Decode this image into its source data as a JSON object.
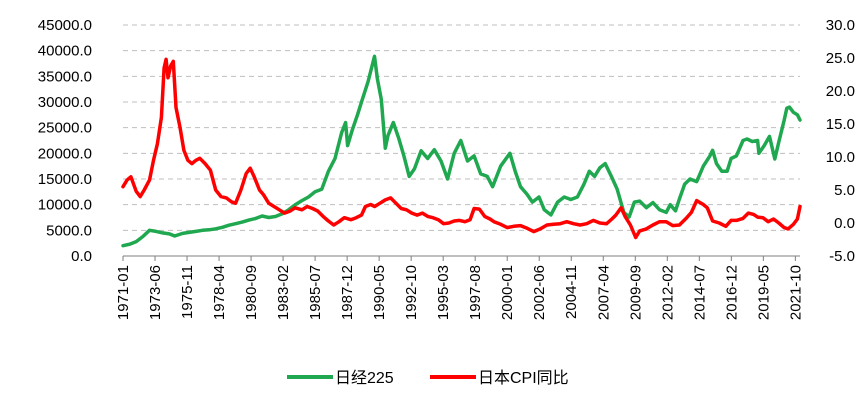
{
  "chart_data": {
    "type": "line",
    "x_tick_labels": [
      "1971-01",
      "1973-06",
      "1975-11",
      "1978-04",
      "1980-09",
      "1983-02",
      "1985-07",
      "1987-12",
      "1990-05",
      "1992-10",
      "1995-03",
      "1997-08",
      "2000-01",
      "2002-06",
      "2004-11",
      "2007-04",
      "2009-09",
      "2012-02",
      "2014-07",
      "2016-12",
      "2019-05",
      "2021-10"
    ],
    "x_tick_dates": [
      1971.0,
      1973.417,
      1975.833,
      1978.25,
      1980.667,
      1983.083,
      1985.5,
      1987.917,
      1990.333,
      1992.75,
      1995.167,
      1997.583,
      2000.0,
      2002.417,
      2004.833,
      2007.25,
      2009.667,
      2012.083,
      2014.5,
      2016.917,
      2019.333,
      2021.75
    ],
    "x_range": [
      1971.0,
      2022.1
    ],
    "y_left": {
      "ticks": [
        "0.0",
        "5000.0",
        "10000.0",
        "15000.0",
        "20000.0",
        "25000.0",
        "30000.0",
        "35000.0",
        "40000.0",
        "45000.0"
      ],
      "range": [
        0,
        45000
      ]
    },
    "y_right": {
      "ticks": [
        "-5.0",
        "0.0",
        "5.0",
        "10.0",
        "15.0",
        "20.0",
        "25.0",
        "30.0"
      ],
      "range": [
        -5,
        30
      ]
    },
    "grid": "horizontal dashed",
    "legend_position": "bottom-center",
    "series": [
      {
        "name": "日经225",
        "axis": "left",
        "color": "#1fa84f",
        "points": [
          [
            1971.0,
            2000
          ],
          [
            1971.5,
            2300
          ],
          [
            1972.0,
            2800
          ],
          [
            1972.5,
            3800
          ],
          [
            1973.0,
            5000
          ],
          [
            1973.5,
            4800
          ],
          [
            1974.0,
            4500
          ],
          [
            1974.5,
            4300
          ],
          [
            1974.9,
            3900
          ],
          [
            1975.5,
            4400
          ],
          [
            1976.0,
            4600
          ],
          [
            1976.5,
            4800
          ],
          [
            1977.0,
            5000
          ],
          [
            1977.5,
            5100
          ],
          [
            1978.0,
            5300
          ],
          [
            1978.5,
            5600
          ],
          [
            1979.0,
            6000
          ],
          [
            1979.5,
            6300
          ],
          [
            1980.0,
            6600
          ],
          [
            1980.5,
            7000
          ],
          [
            1981.0,
            7300
          ],
          [
            1981.5,
            7800
          ],
          [
            1982.0,
            7500
          ],
          [
            1982.5,
            7700
          ],
          [
            1983.0,
            8200
          ],
          [
            1983.5,
            9000
          ],
          [
            1984.0,
            10000
          ],
          [
            1984.5,
            10800
          ],
          [
            1985.0,
            11500
          ],
          [
            1985.5,
            12500
          ],
          [
            1986.0,
            13000
          ],
          [
            1986.5,
            16500
          ],
          [
            1987.0,
            19000
          ],
          [
            1987.5,
            24000
          ],
          [
            1987.8,
            26000
          ],
          [
            1987.95,
            21500
          ],
          [
            1988.3,
            24500
          ],
          [
            1988.7,
            27500
          ],
          [
            1989.0,
            30000
          ],
          [
            1989.5,
            34000
          ],
          [
            1989.98,
            38900
          ],
          [
            1990.2,
            34500
          ],
          [
            1990.5,
            30500
          ],
          [
            1990.8,
            21000
          ],
          [
            1991.0,
            23500
          ],
          [
            1991.4,
            26000
          ],
          [
            1991.8,
            23000
          ],
          [
            1992.2,
            19500
          ],
          [
            1992.6,
            15500
          ],
          [
            1993.0,
            17000
          ],
          [
            1993.5,
            20500
          ],
          [
            1994.0,
            19000
          ],
          [
            1994.5,
            20700
          ],
          [
            1995.0,
            18500
          ],
          [
            1995.5,
            15000
          ],
          [
            1996.0,
            20000
          ],
          [
            1996.5,
            22500
          ],
          [
            1997.0,
            18500
          ],
          [
            1997.5,
            19500
          ],
          [
            1998.0,
            16000
          ],
          [
            1998.5,
            15500
          ],
          [
            1998.9,
            13500
          ],
          [
            1999.5,
            17500
          ],
          [
            2000.2,
            20000
          ],
          [
            2000.6,
            16500
          ],
          [
            2001.0,
            13500
          ],
          [
            2001.5,
            12000
          ],
          [
            2001.9,
            10500
          ],
          [
            2002.4,
            11500
          ],
          [
            2002.8,
            9000
          ],
          [
            2003.3,
            8000
          ],
          [
            2003.8,
            10500
          ],
          [
            2004.3,
            11500
          ],
          [
            2004.8,
            11000
          ],
          [
            2005.3,
            11500
          ],
          [
            2005.8,
            14000
          ],
          [
            2006.2,
            16500
          ],
          [
            2006.6,
            15500
          ],
          [
            2007.0,
            17200
          ],
          [
            2007.4,
            18000
          ],
          [
            2007.9,
            15300
          ],
          [
            2008.3,
            13000
          ],
          [
            2008.8,
            8500
          ],
          [
            2009.2,
            7600
          ],
          [
            2009.6,
            10500
          ],
          [
            2010.0,
            10700
          ],
          [
            2010.5,
            9400
          ],
          [
            2011.0,
            10400
          ],
          [
            2011.5,
            9000
          ],
          [
            2012.0,
            8500
          ],
          [
            2012.3,
            10000
          ],
          [
            2012.7,
            8800
          ],
          [
            2013.0,
            11100
          ],
          [
            2013.4,
            14000
          ],
          [
            2013.8,
            15000
          ],
          [
            2014.3,
            14500
          ],
          [
            2014.8,
            17500
          ],
          [
            2015.3,
            19500
          ],
          [
            2015.5,
            20600
          ],
          [
            2015.8,
            18000
          ],
          [
            2016.2,
            16500
          ],
          [
            2016.6,
            16500
          ],
          [
            2016.9,
            19000
          ],
          [
            2017.3,
            19500
          ],
          [
            2017.8,
            22500
          ],
          [
            2018.1,
            22800
          ],
          [
            2018.5,
            22300
          ],
          [
            2018.9,
            22500
          ],
          [
            2019.0,
            20000
          ],
          [
            2019.4,
            21500
          ],
          [
            2019.8,
            23300
          ],
          [
            2020.2,
            18900
          ],
          [
            2020.5,
            22200
          ],
          [
            2020.9,
            26400
          ],
          [
            2021.1,
            28800
          ],
          [
            2021.3,
            29000
          ],
          [
            2021.6,
            28000
          ],
          [
            2021.9,
            27500
          ],
          [
            2022.1,
            26500
          ]
        ]
      },
      {
        "name": "日本CPI同比",
        "axis": "right",
        "color": "#ff0000",
        "points": [
          [
            1971.0,
            5.5
          ],
          [
            1971.3,
            6.5
          ],
          [
            1971.6,
            7.0
          ],
          [
            1972.0,
            4.8
          ],
          [
            1972.3,
            4.0
          ],
          [
            1972.6,
            5.0
          ],
          [
            1973.0,
            6.5
          ],
          [
            1973.3,
            9.5
          ],
          [
            1973.6,
            12.0
          ],
          [
            1973.9,
            16.0
          ],
          [
            1974.1,
            23.5
          ],
          [
            1974.25,
            24.8
          ],
          [
            1974.4,
            22.0
          ],
          [
            1974.6,
            23.8
          ],
          [
            1974.8,
            24.5
          ],
          [
            1975.0,
            17.5
          ],
          [
            1975.3,
            14.5
          ],
          [
            1975.6,
            11.0
          ],
          [
            1975.9,
            9.5
          ],
          [
            1976.2,
            9.0
          ],
          [
            1976.5,
            9.5
          ],
          [
            1976.8,
            9.8
          ],
          [
            1977.2,
            9.0
          ],
          [
            1977.6,
            8.0
          ],
          [
            1978.0,
            5.0
          ],
          [
            1978.4,
            4.0
          ],
          [
            1978.8,
            3.8
          ],
          [
            1979.2,
            3.2
          ],
          [
            1979.5,
            3.0
          ],
          [
            1979.9,
            5.0
          ],
          [
            1980.3,
            7.5
          ],
          [
            1980.6,
            8.3
          ],
          [
            1980.9,
            7.0
          ],
          [
            1981.3,
            5.0
          ],
          [
            1981.6,
            4.3
          ],
          [
            1982.0,
            3.0
          ],
          [
            1982.4,
            2.5
          ],
          [
            1982.8,
            2.0
          ],
          [
            1983.2,
            1.5
          ],
          [
            1983.6,
            1.8
          ],
          [
            1984.0,
            2.3
          ],
          [
            1984.5,
            2.0
          ],
          [
            1984.9,
            2.5
          ],
          [
            1985.3,
            2.2
          ],
          [
            1985.7,
            1.8
          ],
          [
            1986.1,
            1.0
          ],
          [
            1986.5,
            0.3
          ],
          [
            1986.9,
            -0.3
          ],
          [
            1987.3,
            0.2
          ],
          [
            1987.7,
            0.8
          ],
          [
            1988.2,
            0.5
          ],
          [
            1988.6,
            0.8
          ],
          [
            1989.0,
            1.2
          ],
          [
            1989.3,
            2.5
          ],
          [
            1989.7,
            2.8
          ],
          [
            1990.0,
            2.5
          ],
          [
            1990.4,
            3.0
          ],
          [
            1990.8,
            3.5
          ],
          [
            1991.2,
            3.8
          ],
          [
            1991.6,
            3.0
          ],
          [
            1992.0,
            2.2
          ],
          [
            1992.4,
            2.0
          ],
          [
            1992.8,
            1.5
          ],
          [
            1993.2,
            1.2
          ],
          [
            1993.6,
            1.5
          ],
          [
            1994.0,
            1.0
          ],
          [
            1994.4,
            0.8
          ],
          [
            1994.8,
            0.5
          ],
          [
            1995.2,
            -0.1
          ],
          [
            1995.6,
            0.0
          ],
          [
            1996.0,
            0.3
          ],
          [
            1996.4,
            0.4
          ],
          [
            1996.8,
            0.2
          ],
          [
            1997.2,
            0.5
          ],
          [
            1997.5,
            2.2
          ],
          [
            1997.9,
            2.1
          ],
          [
            1998.3,
            1.0
          ],
          [
            1998.7,
            0.6
          ],
          [
            1999.0,
            0.2
          ],
          [
            1999.5,
            -0.2
          ],
          [
            2000.0,
            -0.7
          ],
          [
            2000.5,
            -0.5
          ],
          [
            2001.0,
            -0.4
          ],
          [
            2001.5,
            -0.8
          ],
          [
            2002.0,
            -1.3
          ],
          [
            2002.5,
            -0.9
          ],
          [
            2003.0,
            -0.3
          ],
          [
            2003.5,
            -0.2
          ],
          [
            2004.0,
            -0.1
          ],
          [
            2004.5,
            0.2
          ],
          [
            2005.0,
            -0.1
          ],
          [
            2005.5,
            -0.3
          ],
          [
            2006.0,
            -0.1
          ],
          [
            2006.5,
            0.4
          ],
          [
            2007.0,
            0.0
          ],
          [
            2007.5,
            -0.1
          ],
          [
            2007.9,
            0.6
          ],
          [
            2008.2,
            1.2
          ],
          [
            2008.6,
            2.3
          ],
          [
            2008.9,
            1.0
          ],
          [
            2009.3,
            -0.3
          ],
          [
            2009.7,
            -2.2
          ],
          [
            2010.0,
            -1.2
          ],
          [
            2010.5,
            -0.9
          ],
          [
            2011.0,
            -0.3
          ],
          [
            2011.5,
            0.2
          ],
          [
            2012.0,
            0.2
          ],
          [
            2012.5,
            -0.4
          ],
          [
            2013.0,
            -0.3
          ],
          [
            2013.5,
            0.7
          ],
          [
            2013.9,
            1.6
          ],
          [
            2014.3,
            3.4
          ],
          [
            2014.8,
            2.8
          ],
          [
            2015.1,
            2.3
          ],
          [
            2015.5,
            0.3
          ],
          [
            2016.0,
            0.0
          ],
          [
            2016.5,
            -0.5
          ],
          [
            2016.9,
            0.4
          ],
          [
            2017.3,
            0.4
          ],
          [
            2017.8,
            0.7
          ],
          [
            2018.2,
            1.5
          ],
          [
            2018.6,
            1.3
          ],
          [
            2018.9,
            0.9
          ],
          [
            2019.3,
            0.8
          ],
          [
            2019.7,
            0.2
          ],
          [
            2020.1,
            0.6
          ],
          [
            2020.5,
            0.0
          ],
          [
            2020.9,
            -0.7
          ],
          [
            2021.2,
            -0.9
          ],
          [
            2021.6,
            -0.2
          ],
          [
            2021.9,
            0.6
          ],
          [
            2022.1,
            2.5
          ]
        ]
      }
    ]
  }
}
